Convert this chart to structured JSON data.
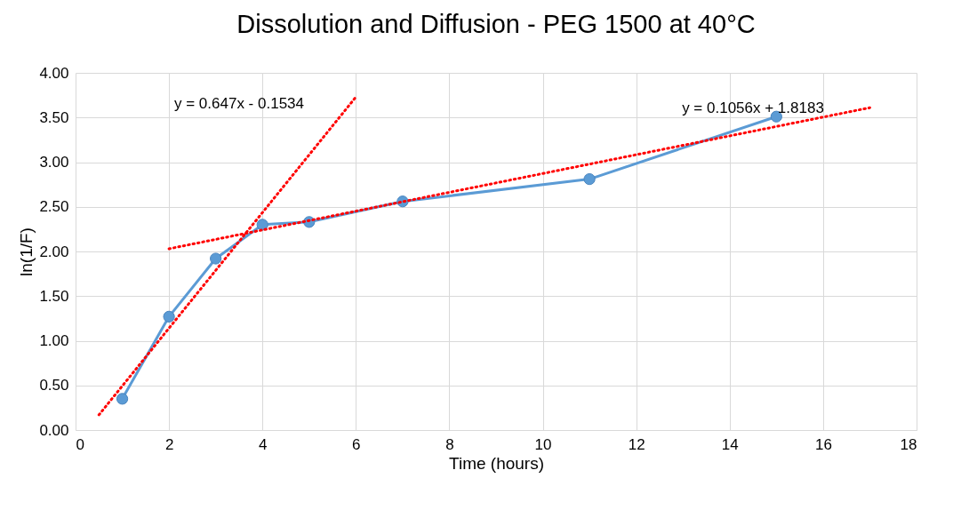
{
  "chart_data": {
    "type": "line",
    "title": "Dissolution and Diffusion - PEG 1500 at 40°C",
    "xlabel": "Time (hours)",
    "ylabel": "ln(1/F)",
    "x": [
      1,
      2,
      3,
      4,
      5,
      7,
      11,
      15
    ],
    "series": [
      {
        "color": "#5b9bd5",
        "values": [
          0.35,
          1.27,
          1.92,
          2.3,
          2.33,
          2.56,
          2.81,
          3.51
        ]
      },
      {
        "type": "line",
        "x": [
          0.5,
          6
        ],
        "color": "#ff0000",
        "values": [
          0.17,
          3.73
        ],
        "marker": "none",
        "line_style": "dotted"
      },
      {
        "type": "line",
        "x": [
          2,
          17
        ],
        "color": "#ff0000",
        "values": [
          2.03,
          3.61
        ],
        "marker": "none",
        "line_style": "dotted"
      }
    ],
    "annotations": [
      "y = 0.647x - 0.1534",
      "y = 0.1056x + 1.8183"
    ],
    "xlim": [
      0,
      18
    ],
    "xticks": [
      0,
      2,
      4,
      6,
      8,
      10,
      12,
      14,
      16,
      18
    ],
    "ylim": [
      0,
      4
    ],
    "yticks": [
      {
        "value": 0,
        "label": "0.00"
      },
      {
        "value": 0.5,
        "label": "0.50"
      },
      {
        "value": 1,
        "label": "1.00"
      },
      {
        "value": 1.5,
        "label": "1.50"
      },
      {
        "value": 2,
        "label": "2.00"
      },
      {
        "value": 2.5,
        "label": "2.50"
      },
      {
        "value": 3,
        "label": "3.00"
      },
      {
        "value": 3.5,
        "label": "3.50"
      },
      {
        "value": 4,
        "label": "4.00"
      }
    ],
    "grid": true,
    "marker": "circle",
    "line_style": "solid"
  }
}
